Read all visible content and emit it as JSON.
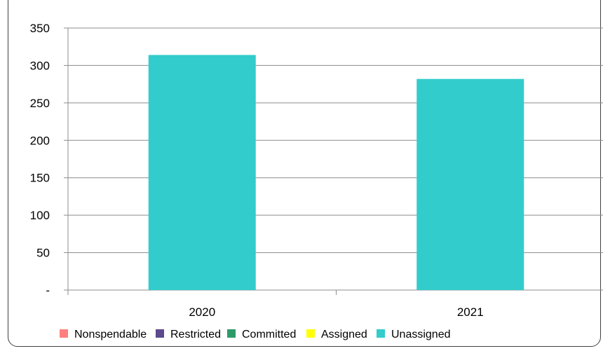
{
  "chart_data": {
    "type": "bar",
    "stacked": true,
    "categories": [
      "2020",
      "2021"
    ],
    "ylim": [
      0,
      350
    ],
    "yticks": [
      {
        "value": 0,
        "label": "-"
      },
      {
        "value": 50,
        "label": "50"
      },
      {
        "value": 100,
        "label": "100"
      },
      {
        "value": 150,
        "label": "150"
      },
      {
        "value": 200,
        "label": "200"
      },
      {
        "value": 250,
        "label": "250"
      },
      {
        "value": 300,
        "label": "300"
      },
      {
        "value": 350,
        "label": "350"
      }
    ],
    "grid": true,
    "legend_position": "bottom",
    "series": [
      {
        "name": "Nonspendable",
        "color": "#ff7f7f",
        "values": [
          0,
          0
        ]
      },
      {
        "name": "Restricted",
        "color": "#5c4a8c",
        "values": [
          0,
          0
        ]
      },
      {
        "name": "Committed",
        "color": "#2e9a6a",
        "values": [
          0,
          0
        ]
      },
      {
        "name": "Assigned",
        "color": "#ffff00",
        "values": [
          0,
          0
        ]
      },
      {
        "name": "Unassigned",
        "color": "#33cccc",
        "values": [
          314,
          282
        ]
      }
    ]
  }
}
